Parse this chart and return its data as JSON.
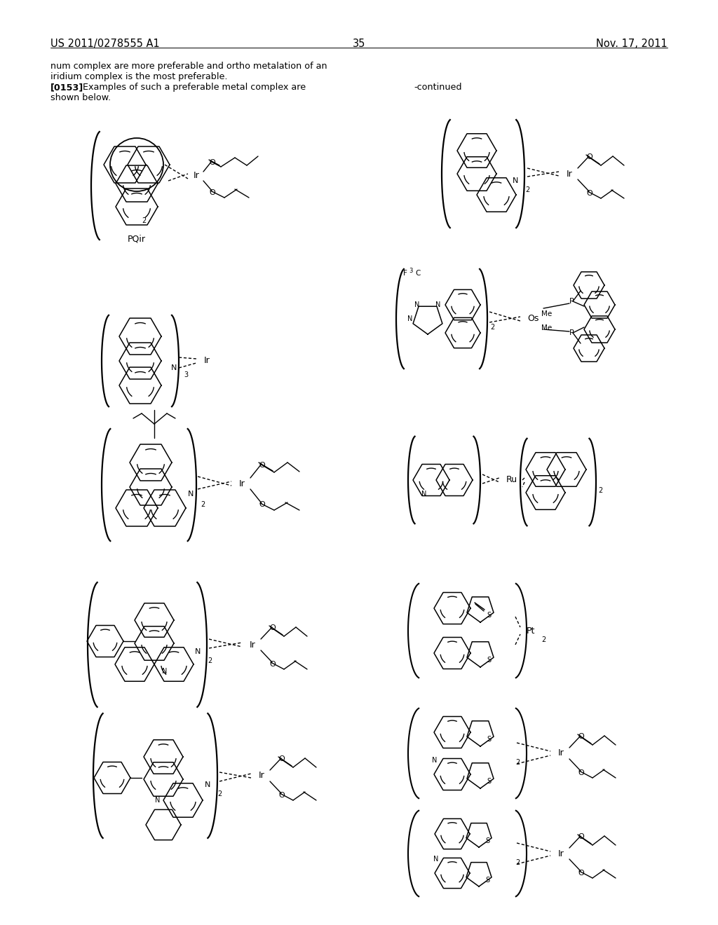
{
  "page_number": "35",
  "patent_number": "US 2011/0278555 A1",
  "patent_date": "Nov. 17, 2011",
  "bg_color": "#ffffff",
  "text_color": "#000000",
  "body_fontsize": 9.2,
  "header_fontsize": 10.5
}
